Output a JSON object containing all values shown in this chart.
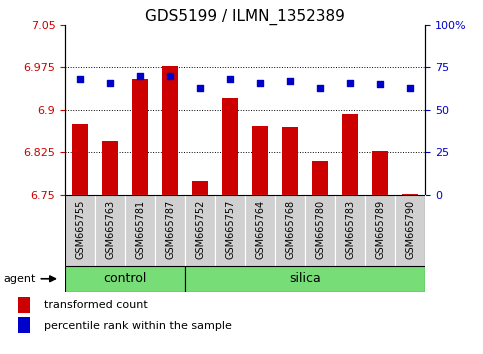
{
  "title": "GDS5199 / ILMN_1352389",
  "categories": [
    "GSM665755",
    "GSM665763",
    "GSM665781",
    "GSM665787",
    "GSM665752",
    "GSM665757",
    "GSM665764",
    "GSM665768",
    "GSM665780",
    "GSM665783",
    "GSM665789",
    "GSM665790"
  ],
  "bar_values": [
    6.875,
    6.845,
    6.955,
    6.978,
    6.775,
    6.92,
    6.872,
    6.87,
    6.81,
    6.893,
    6.828,
    6.752
  ],
  "bar_base": 6.75,
  "percentile_values": [
    68,
    66,
    70,
    70,
    63,
    68,
    66,
    67,
    63,
    66,
    65,
    63
  ],
  "ylim_left": [
    6.75,
    7.05
  ],
  "ylim_right": [
    0,
    100
  ],
  "yticks_left": [
    6.75,
    6.825,
    6.9,
    6.975,
    7.05
  ],
  "yticks_right": [
    0,
    25,
    50,
    75,
    100
  ],
  "ytick_labels_left": [
    "6.75",
    "6.825",
    "6.9",
    "6.975",
    "7.05"
  ],
  "ytick_labels_right": [
    "0",
    "25",
    "50",
    "75",
    "100%"
  ],
  "bar_color": "#cc0000",
  "dot_color": "#0000cc",
  "control_label": "control",
  "silica_label": "silica",
  "control_indices": [
    0,
    1,
    2,
    3
  ],
  "silica_indices": [
    4,
    5,
    6,
    7,
    8,
    9,
    10,
    11
  ],
  "agent_label": "agent",
  "legend_bar_label": "transformed count",
  "legend_dot_label": "percentile rank within the sample",
  "xticklabel_bg": "#d0d0d0",
  "group_bg": "#77dd77",
  "title_fontsize": 11,
  "tick_fontsize": 8,
  "bar_width": 0.55,
  "dot_size": 25,
  "fig_width": 4.83,
  "fig_height": 3.54
}
